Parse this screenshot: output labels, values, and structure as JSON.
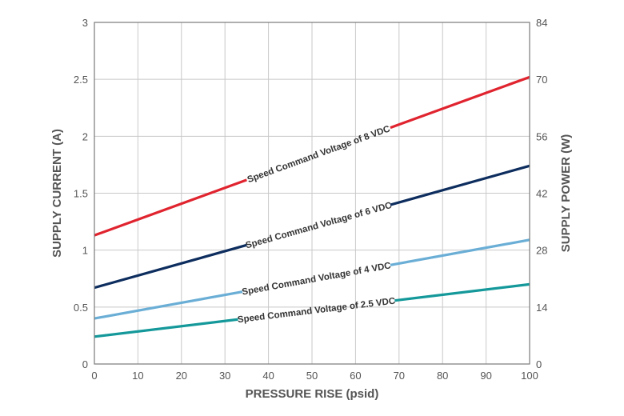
{
  "chart_data": {
    "type": "line",
    "xlabel": "PRESSURE RISE (psid)",
    "ylabel": "SUPPLY CURRENT (A)",
    "y2label": "SUPPLY POWER (W)",
    "xlim": [
      0,
      100
    ],
    "ylim": [
      0,
      3
    ],
    "y2lim": [
      0,
      84
    ],
    "x_ticks": [
      "0",
      "10",
      "20",
      "30",
      "40",
      "50",
      "60",
      "70",
      "80",
      "90",
      "100"
    ],
    "y_ticks": [
      "0",
      "0.5",
      "1",
      "1.5",
      "2",
      "2.5",
      "3"
    ],
    "y2_ticks": [
      "0",
      "14",
      "28",
      "42",
      "56",
      "70",
      "84"
    ],
    "grid": true,
    "series": [
      {
        "label": "Speed Command Voltage of 8 VDC",
        "color": "#e0242f",
        "x": [
          0,
          100
        ],
        "y": [
          1.13,
          2.52
        ],
        "label_gap": [
          35,
          68
        ]
      },
      {
        "label": "Speed Command Voltage of 6 VDC",
        "color": "#0d2d5e",
        "x": [
          0,
          100
        ],
        "y": [
          0.67,
          1.74
        ],
        "label_gap": [
          35,
          68
        ]
      },
      {
        "label": "Speed Command Voltage of 4 VDC",
        "color": "#6aaed6",
        "x": [
          0,
          100
        ],
        "y": [
          0.4,
          1.09
        ],
        "label_gap": [
          34,
          68
        ]
      },
      {
        "label": "Speed Command Voltage of 2.5 VDC",
        "color": "#14989a",
        "x": [
          0,
          100
        ],
        "y": [
          0.24,
          0.7
        ],
        "label_gap": [
          33,
          69
        ]
      }
    ]
  }
}
